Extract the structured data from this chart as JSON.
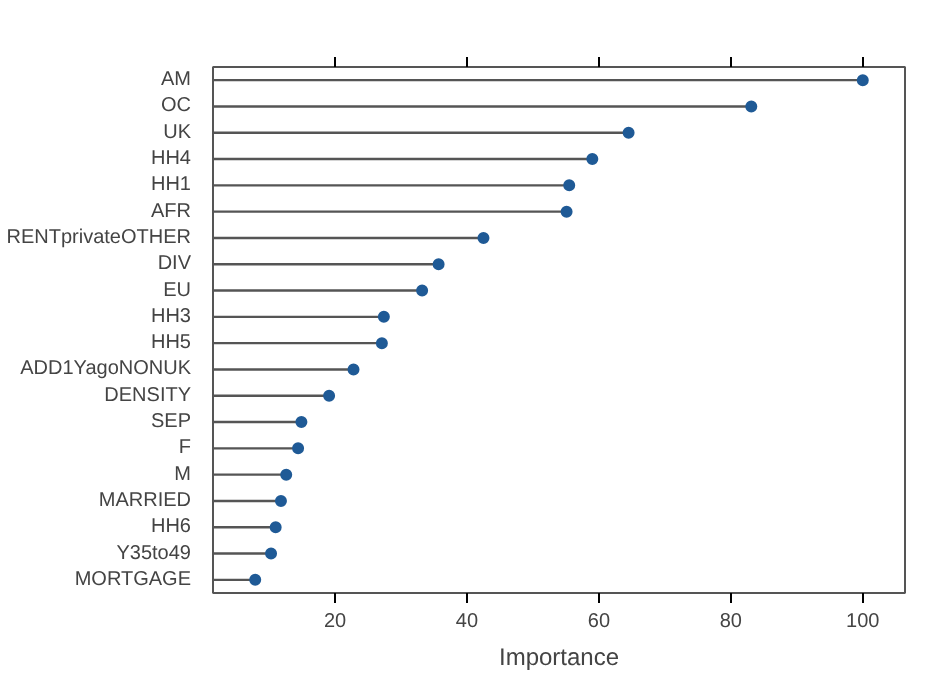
{
  "chart_data": {
    "type": "lollipop",
    "xlabel": "Importance",
    "categories": [
      "AM",
      "OC",
      "UK",
      "HH4",
      "HH1",
      "AFR",
      "RENTprivateOTHER",
      "DIV",
      "EU",
      "HH3",
      "HH5",
      "ADD1YagoNONUK",
      "DENSITY",
      "SEP",
      "F",
      "M",
      "MARRIED",
      "HH6",
      "Y35to49",
      "MORTGAGE"
    ],
    "values": [
      100,
      83.1,
      64.5,
      59.0,
      55.5,
      55.1,
      42.5,
      35.7,
      33.2,
      27.4,
      27.1,
      22.8,
      19.1,
      14.9,
      14.4,
      12.6,
      11.8,
      11.0,
      10.3,
      7.9
    ],
    "color": "#1f5a96",
    "orientation": "horizontal",
    "xlim": [
      1.5,
      106.4
    ],
    "xticks": [
      20,
      40,
      60,
      80,
      100
    ],
    "grid": false,
    "marker": "circle"
  }
}
